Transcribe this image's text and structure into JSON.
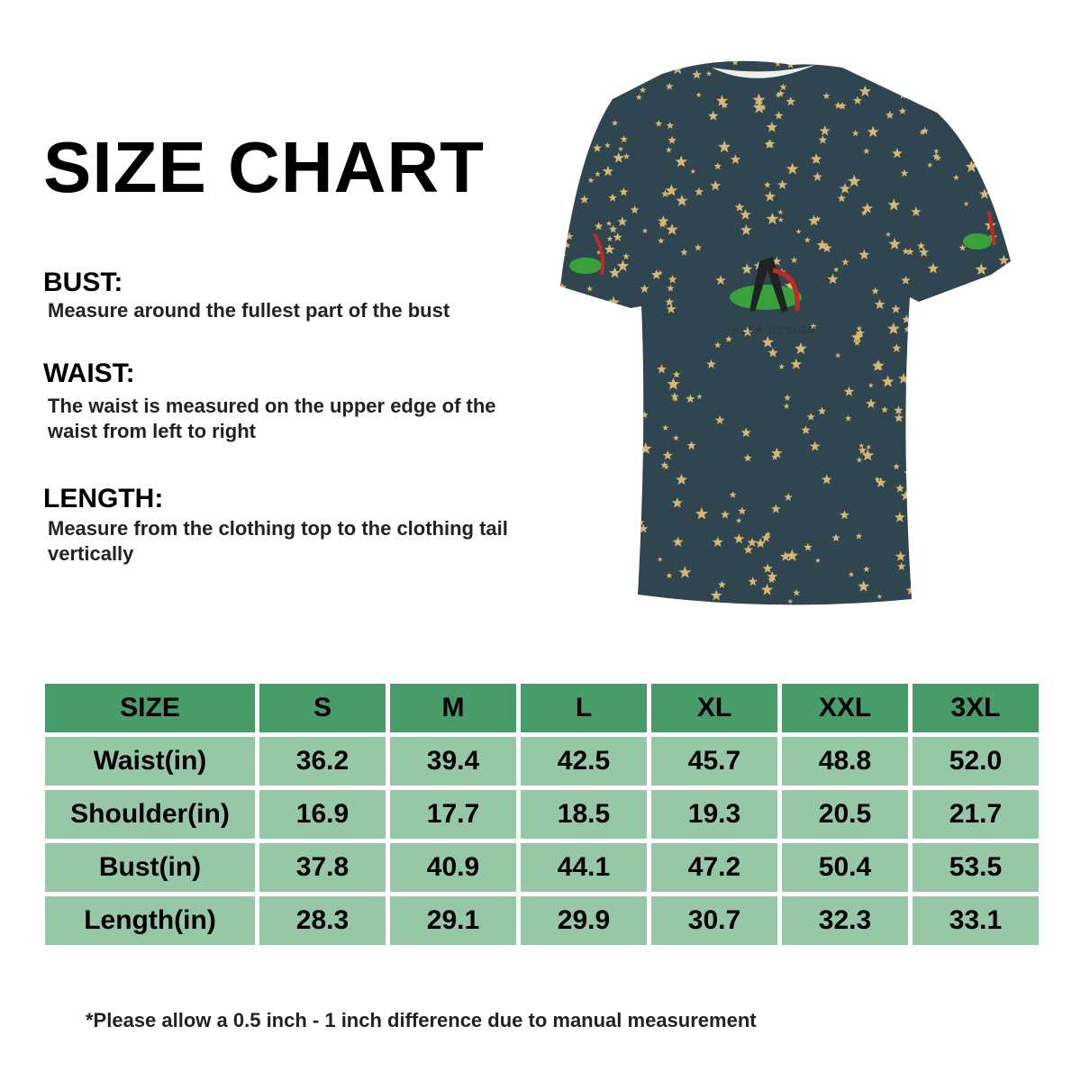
{
  "title": "SIZE CHART",
  "sections": [
    {
      "heading": "BUST:",
      "description": "Measure around the fullest part of the bust"
    },
    {
      "heading": "WAIST:",
      "description": "The waist is measured on the upper edge of the waist from left to right"
    },
    {
      "heading": "LENGTH:",
      "description": "Measure from the clothing top to the clothing tail vertically"
    }
  ],
  "product": {
    "image": "t-shirt with gold star pattern on dark teal",
    "logo_text": "ALFA DESIGN",
    "colors": {
      "fabric": "#2f4650",
      "stars": "#d8b772"
    }
  },
  "table": {
    "headers": [
      "SIZE",
      "S",
      "M",
      "L",
      "XL",
      "XXL",
      "3XL"
    ],
    "rows": [
      [
        "Waist(in)",
        "36.2",
        "39.4",
        "42.5",
        "45.7",
        "48.8",
        "52.0"
      ],
      [
        "Shoulder(in)",
        "16.9",
        "17.7",
        "18.5",
        "19.3",
        "20.5",
        "21.7"
      ],
      [
        "Bust(in)",
        "37.8",
        "40.9",
        "44.1",
        "47.2",
        "50.4",
        "53.5"
      ],
      [
        "Length(in)",
        "28.3",
        "29.1",
        "29.9",
        "30.7",
        "32.3",
        "33.1"
      ]
    ],
    "colors": {
      "header": "#489c6a",
      "row": "#96c8a8"
    }
  },
  "note": "*Please allow a 0.5 inch - 1 inch difference due to manual measurement"
}
